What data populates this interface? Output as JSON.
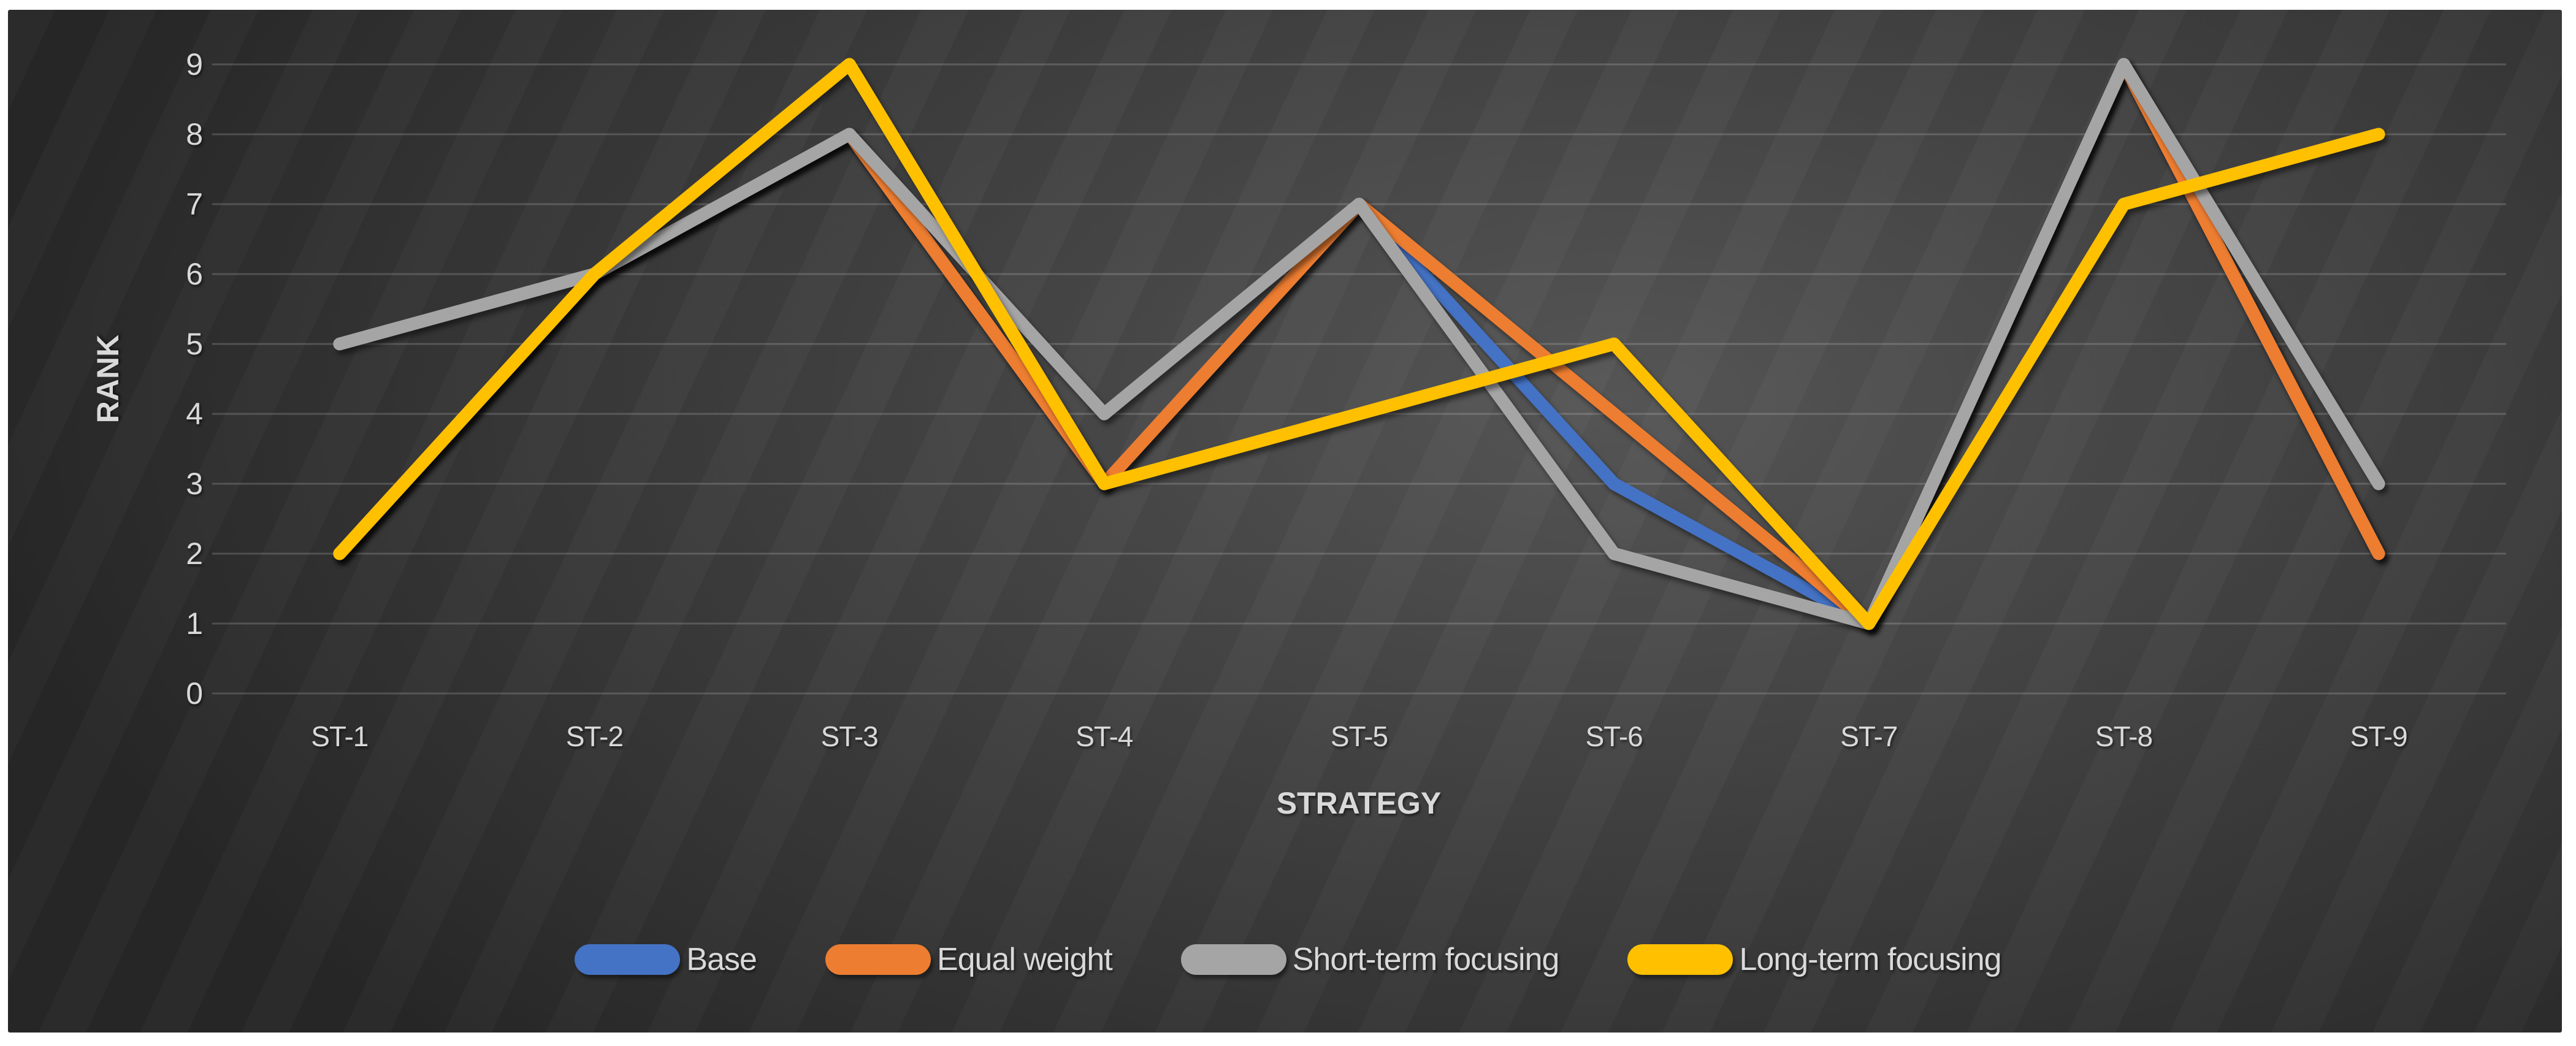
{
  "chart_data": {
    "type": "line",
    "categories": [
      "ST-1",
      "ST-2",
      "ST-3",
      "ST-4",
      "ST-5",
      "ST-6",
      "ST-7",
      "ST-8",
      "ST-9"
    ],
    "series": [
      {
        "name": "Base",
        "color": "#4472C4",
        "values": [
          2,
          6,
          8,
          3,
          7,
          3,
          1,
          9,
          2
        ]
      },
      {
        "name": "Equal weight",
        "color": "#ED7D31",
        "values": [
          2,
          6,
          8,
          3,
          7,
          4,
          1,
          9,
          2
        ]
      },
      {
        "name": "Short-term focusing",
        "color": "#A5A5A5",
        "values": [
          5,
          6,
          8,
          4,
          7,
          2,
          1,
          9,
          3
        ]
      },
      {
        "name": "Long-term focusing",
        "color": "#FFC000",
        "values": [
          2,
          6,
          9,
          3,
          4,
          5,
          1,
          7,
          8
        ]
      }
    ],
    "xlabel": "STRATEGY",
    "ylabel": "RANK",
    "y_ticks": [
      0,
      1,
      2,
      3,
      4,
      5,
      6,
      7,
      8,
      9
    ],
    "ylim": [
      0,
      9
    ],
    "grid": true,
    "legend_position": "bottom"
  },
  "style": {
    "background": "dark gradient panel on white page",
    "grid_color": "rgba(255,255,255,0.17)",
    "tick_label_color": "#d9d9d9",
    "line_width": 21
  }
}
